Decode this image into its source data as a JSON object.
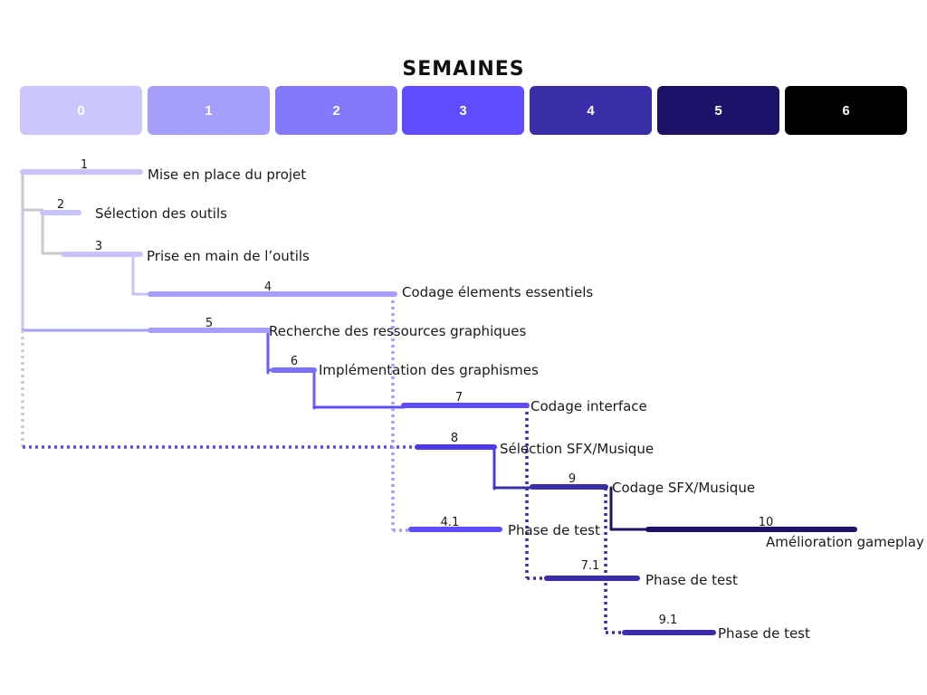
{
  "header": {
    "title": "SEMAINES",
    "weeks": [
      {
        "label": "0",
        "color": "#ccc6ff"
      },
      {
        "label": "1",
        "color": "#a59efa"
      },
      {
        "label": "2",
        "color": "#8279fb"
      },
      {
        "label": "3",
        "color": "#5f4cff"
      },
      {
        "label": "4",
        "color": "#3a2ea8"
      },
      {
        "label": "5",
        "color": "#1c1368"
      },
      {
        "label": "6",
        "color": "#000000"
      }
    ]
  },
  "tasks": [
    {
      "num": "1",
      "label": "Mise en place du projet",
      "start_week": 0,
      "end_week": 1,
      "color": "#c9c3fb"
    },
    {
      "num": "2",
      "label": "Sélection des outils",
      "start_week": 0.2,
      "end_week": 0.45,
      "color": "#c9c3fb"
    },
    {
      "num": "3",
      "label": "Prise en main de l’outils",
      "start_week": 0.35,
      "end_week": 1,
      "color": "#c9c3fb"
    },
    {
      "num": "4",
      "label": "Codage élements essentiels",
      "start_week": 1,
      "end_week": 3,
      "color": "#a59efa"
    },
    {
      "num": "5",
      "label": "Recherche des ressources graphiques",
      "start_week": 1,
      "end_week": 2,
      "color": "#a59efa"
    },
    {
      "num": "6",
      "label": "Implémentation des graphismes",
      "start_week": 2,
      "end_week": 2.3,
      "color": "#7c72f7"
    },
    {
      "num": "7",
      "label": "Codage interface",
      "start_week": 3,
      "end_week": 4,
      "color": "#5f4cff"
    },
    {
      "num": "8",
      "label": "Sélection SFX/Musique",
      "start_week": 3.2,
      "end_week": 3.8,
      "color": "#4b3be6"
    },
    {
      "num": "9",
      "label": "Codage SFX/Musique",
      "start_week": 4,
      "end_week": 4.6,
      "color": "#3a2ea8"
    },
    {
      "num": "10",
      "label": "Amélioration gameplay",
      "start_week": 5,
      "end_week": 6,
      "color": "#1c1368"
    },
    {
      "num": "4.1",
      "label": "Phase de test",
      "start_week": 3,
      "end_week": 3.7,
      "color": "#5f4cff"
    },
    {
      "num": "7.1",
      "label": "Phase de test",
      "start_week": 4,
      "end_week": 4.8,
      "color": "#3a2ea8"
    },
    {
      "num": "9.1",
      "label": "Phase de test",
      "start_week": 4.6,
      "end_week": 5.4,
      "color": "#3a2ea8"
    }
  ]
}
